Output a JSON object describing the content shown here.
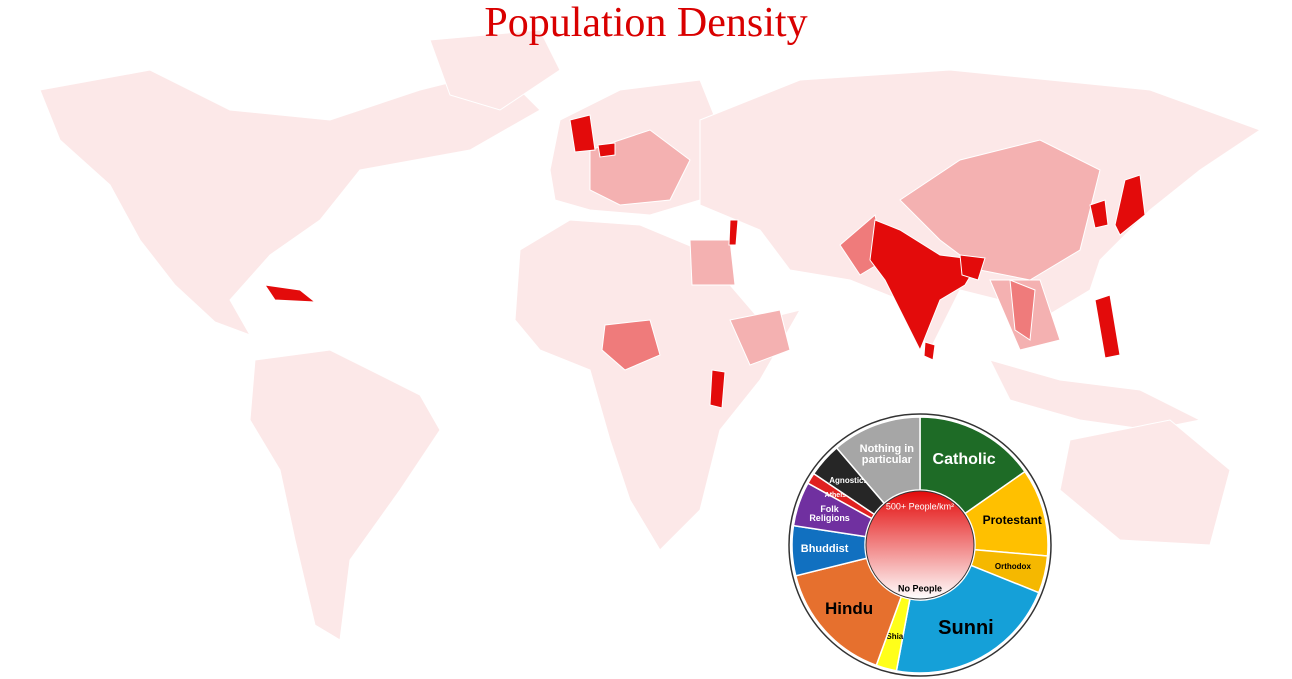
{
  "title": "Population Density",
  "chart_data": {
    "type": "donut",
    "categories": [
      "Catholic",
      "Protestant",
      "Orthodox",
      "Sunni",
      "Shia",
      "Hindu",
      "Bhuddist",
      "Folk Religions",
      "Atheists",
      "Agnostics",
      "Nothing in particular"
    ],
    "values": [
      15.3,
      11.1,
      4.7,
      21.9,
      2.6,
      15.6,
      6.3,
      5.6,
      1.4,
      4.3,
      11.3
    ],
    "colors": [
      "#1e6b26",
      "#ffc000",
      "#f5b800",
      "#15a0d8",
      "#ffff1a",
      "#e6702e",
      "#1170c0",
      "#7030a0",
      "#e02020",
      "#262626",
      "#a6a6a6"
    ],
    "label_colors": [
      "#ffffff",
      "#000000",
      "#000000",
      "#000000",
      "#000000",
      "#000000",
      "#ffffff",
      "#ffffff",
      "#ffffff",
      "#ffffff",
      "#ffffff"
    ],
    "center_labels": {
      "top": "500+ People/km²",
      "bottom": "No People"
    }
  }
}
